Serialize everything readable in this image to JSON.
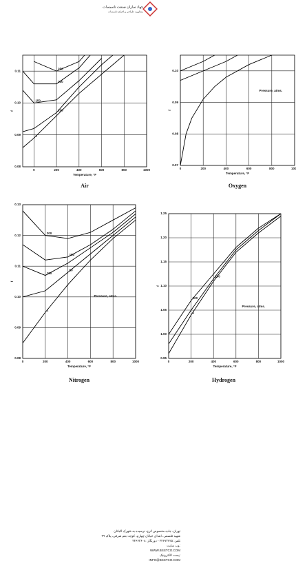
{
  "header": {
    "company": "جهاد سازان صنعت تاسیسات",
    "tagline": "مشاوره، طراحی و اجرای تاسیسات"
  },
  "footer": {
    "lines": [
      "تهران، جاده مخصوص کرج، نرسیده به شهرک اکباتان",
      "شهید فلسفی، ابتدای خیابان چهارم، کوچه دهم شرقی، پلاک ۳۹",
      "تلفن: ۴۴۶۷۳۷۲۵ - دورنگار: ۴۴۶۷۳۶۰۸",
      "وب سایت:",
      "WWW.BSSTCO.COM",
      "پست الکترونیک:",
      "INFO@BSSTCO.COM"
    ]
  },
  "chart_data": [
    {
      "type": "line",
      "title": "Air",
      "x_label": "Temperature, °F",
      "y_label": "f",
      "grid": true,
      "xlim": [
        -100,
        1000
      ],
      "xticks": [
        0,
        200,
        400,
        600,
        800,
        1000
      ],
      "ylim": [
        0.08,
        0.115
      ],
      "yticks": [
        {
          "value": 0.08,
          "label": "0.08"
        },
        0.09,
        {
          "value": 0.1,
          "label": "0.10"
        },
        0.11
      ],
      "series": [
        {
          "name": "1",
          "color": "#000",
          "x": [
            -100,
            0,
            200,
            400,
            600,
            800
          ],
          "values": [
            0.086,
            0.089,
            0.096,
            0.103,
            0.109,
            0.115
          ]
        },
        {
          "name": "100",
          "color": "#000",
          "x": [
            -100,
            0,
            200,
            400,
            600,
            700
          ],
          "values": [
            0.091,
            0.092,
            0.097,
            0.105,
            0.112,
            0.115
          ]
        },
        {
          "name": "150",
          "color": "#000",
          "x": [
            -100,
            0,
            200,
            400,
            600
          ],
          "values": [
            0.104,
            0.1,
            0.101,
            0.107,
            0.114
          ]
        },
        {
          "name": "200",
          "color": "#000",
          "x": [
            -100,
            0,
            200,
            400,
            500
          ],
          "values": [
            0.11,
            0.106,
            0.106,
            0.111,
            0.115
          ]
        },
        {
          "name": "250",
          "color": "#000",
          "x": [
            0,
            200,
            400,
            450
          ],
          "values": [
            0.113,
            0.11,
            0.113,
            0.115
          ]
        }
      ]
    },
    {
      "type": "line",
      "title": "Oxygen",
      "x_label": "Temperature, °F",
      "y_label": "f",
      "grid": true,
      "annotation": "Pressure, atms.",
      "xlim": [
        0,
        1000
      ],
      "xticks": [
        0,
        200,
        400,
        600,
        800,
        1000
      ],
      "ylim": [
        0.07,
        0.105
      ],
      "yticks": [
        0.07,
        0.08,
        0.09,
        {
          "value": 0.1,
          "label": "0.10"
        }
      ],
      "series": [
        {
          "color": "#000",
          "x": [
            0,
            50,
            100,
            200,
            300,
            400,
            600,
            800
          ],
          "values": [
            0.07,
            0.08,
            0.085,
            0.091,
            0.095,
            0.098,
            0.102,
            0.105
          ]
        },
        {
          "color": "#000",
          "x": [
            0,
            200,
            400,
            500
          ],
          "values": [
            0.097,
            0.1,
            0.103,
            0.105
          ]
        },
        {
          "color": "#000",
          "x": [
            0,
            200,
            300
          ],
          "values": [
            0.1,
            0.103,
            0.105
          ]
        }
      ]
    },
    {
      "type": "line",
      "title": "Nitrogen",
      "x_label": "Temperature, °F",
      "y_label": "f",
      "grid": true,
      "annotation": "Pressure, atms.",
      "xlim": [
        0,
        1000
      ],
      "xticks": [
        0,
        200,
        400,
        600,
        800,
        1000
      ],
      "ylim": [
        0.08,
        0.13
      ],
      "yticks": [
        {
          "value": 0.08,
          "label": "0.08"
        },
        0.09,
        {
          "value": 0.1,
          "label": "0.10"
        },
        0.11,
        0.12,
        0.13
      ],
      "series": [
        {
          "name": "1",
          "color": "#000",
          "x": [
            0,
            200,
            400,
            600,
            800,
            1000
          ],
          "values": [
            0.085,
            0.095,
            0.104,
            0.112,
            0.119,
            0.125
          ]
        },
        {
          "name": "50",
          "color": "#000",
          "x": [
            0,
            200,
            400,
            600,
            800,
            1000
          ],
          "values": [
            0.1,
            0.102,
            0.108,
            0.114,
            0.12,
            0.126
          ]
        },
        {
          "name": "100",
          "color": "#000",
          "x": [
            0,
            200,
            400,
            600,
            800,
            1000
          ],
          "values": [
            0.11,
            0.107,
            0.111,
            0.116,
            0.121,
            0.127
          ]
        },
        {
          "name": "150",
          "color": "#000",
          "x": [
            0,
            200,
            400,
            600,
            800,
            1000
          ],
          "values": [
            0.117,
            0.112,
            0.113,
            0.117,
            0.122,
            0.128
          ]
        },
        {
          "name": "200",
          "color": "#000",
          "x": [
            0,
            200,
            400,
            600,
            800,
            1000
          ],
          "values": [
            0.128,
            0.12,
            0.119,
            0.121,
            0.125,
            0.129
          ]
        }
      ]
    },
    {
      "type": "line",
      "title": "Hydrogen",
      "x_label": "Temperature, °F",
      "y_label": "f",
      "grid": true,
      "annotation": "Pressure, atms.",
      "xlim": [
        0,
        1000
      ],
      "xticks": [
        0,
        200,
        400,
        600,
        800,
        1000
      ],
      "ylim": [
        0.95,
        1.25
      ],
      "yticks": [
        {
          "value": 0.95,
          "label": "0.95"
        },
        {
          "value": 1,
          "label": "1.00"
        },
        1.05,
        {
          "value": 1.1,
          "label": "1.10"
        },
        1.15,
        {
          "value": 1.2,
          "label": "1.20"
        },
        1.25
      ],
      "series": [
        {
          "name": "1",
          "color": "#000",
          "x": [
            0,
            200,
            400,
            600,
            800,
            1000
          ],
          "values": [
            0.96,
            1.04,
            1.11,
            1.17,
            1.21,
            1.245
          ]
        },
        {
          "name": "100",
          "color": "#000",
          "x": [
            0,
            200,
            400,
            600,
            800,
            1000
          ],
          "values": [
            0.98,
            1.05,
            1.115,
            1.175,
            1.215,
            1.25
          ]
        },
        {
          "name": "200",
          "color": "#000",
          "x": [
            0,
            200,
            400,
            600,
            800,
            1000
          ],
          "values": [
            1,
            1.07,
            1.125,
            1.18,
            1.22,
            1.25
          ]
        }
      ]
    }
  ]
}
